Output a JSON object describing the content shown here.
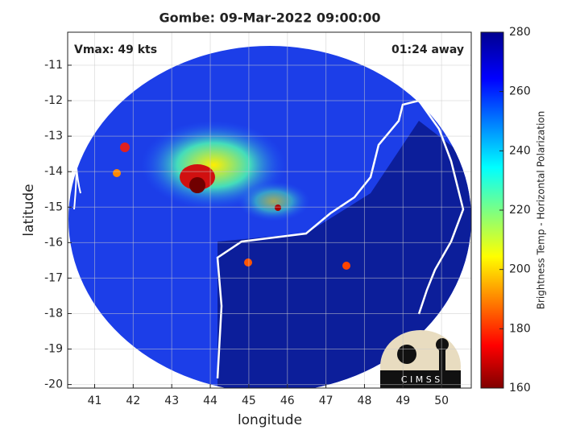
{
  "chart_data": {
    "type": "image",
    "title": "Gombe: 09-Mar-2022 09:00:00",
    "xlabel": "longitude",
    "ylabel": "latitude",
    "xlim": [
      40.3,
      50.77
    ],
    "ylim": [
      -20.1,
      -10.07
    ],
    "xticks": [
      41,
      42,
      43,
      44,
      45,
      46,
      47,
      48,
      49,
      50
    ],
    "yticks": [
      -20,
      -19,
      -18,
      -17,
      -16,
      -15,
      -14,
      -13,
      -12,
      -11
    ],
    "grid": true,
    "annotations": [
      "Vmax: 49 kts",
      "01:24 away"
    ],
    "colorbar": {
      "label": "Brightness Temp - Horizontal Polarization",
      "lim": [
        160,
        280
      ],
      "ticks": [
        160,
        180,
        200,
        220,
        240,
        260,
        280
      ],
      "colormap": "jet"
    },
    "logo": "C I M S S"
  }
}
